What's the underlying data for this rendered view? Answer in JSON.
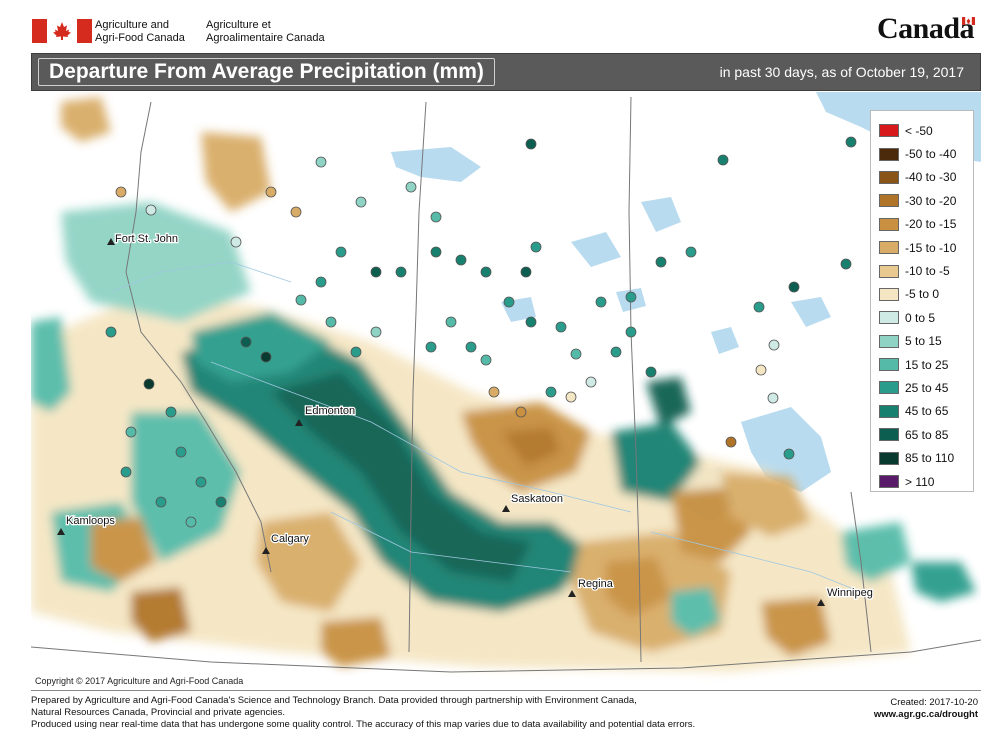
{
  "header": {
    "dept_en": "Agriculture and\nAgri-Food Canada",
    "dept_fr": "Agriculture et\nAgroalimentaire Canada",
    "wordmark": "Canada"
  },
  "title": {
    "main": "Departure From Average Precipitation (mm)",
    "subtitle": "in past 30 days, as of October 19, 2017"
  },
  "legend": [
    {
      "label": "< -50",
      "color": "#d7191c"
    },
    {
      "label": "-50 to -40",
      "color": "#4a2a0a"
    },
    {
      "label": "-40 to -30",
      "color": "#8a5418"
    },
    {
      "label": "-30 to -20",
      "color": "#b07428"
    },
    {
      "label": "-20 to -15",
      "color": "#c89040"
    },
    {
      "label": "-15 to -10",
      "color": "#d8ac66"
    },
    {
      "label": "-10 to -5",
      "color": "#e8c990"
    },
    {
      "label": "-5 to 0",
      "color": "#f5e6c3"
    },
    {
      "label": "0 to 5",
      "color": "#cfe9e4"
    },
    {
      "label": "5 to 15",
      "color": "#8fd3c4"
    },
    {
      "label": "15 to 25",
      "color": "#55bba8"
    },
    {
      "label": "25 to 45",
      "color": "#2a9c8b"
    },
    {
      "label": "45 to 65",
      "color": "#17806f"
    },
    {
      "label": "65 to 85",
      "color": "#0c5e50"
    },
    {
      "label": "85 to 110",
      "color": "#083a2f"
    },
    {
      "label": "> 110",
      "color": "#5a1a6a"
    }
  ],
  "cities": [
    {
      "name": "Fort St. John"
    },
    {
      "name": "Edmonton"
    },
    {
      "name": "Saskatoon"
    },
    {
      "name": "Kamloops"
    },
    {
      "name": "Calgary"
    },
    {
      "name": "Regina"
    },
    {
      "name": "Winnipeg"
    }
  ],
  "copyright": "Copyright © 2017 Agriculture and Agri-Food Canada",
  "footer": {
    "line1": "Prepared by Agriculture and Agri-Food Canada's Science and Technology Branch. Data provided through partnership with Environment Canada,",
    "line2": "Natural Resources Canada, Provincial and private agencies.",
    "line3": "Produced using near real-time data that has undergone some quality control. The accuracy of this map varies due to data availability and potential data errors.",
    "created": "Created: 2017-10-20",
    "url": "www.agr.gc.ca/drought"
  }
}
